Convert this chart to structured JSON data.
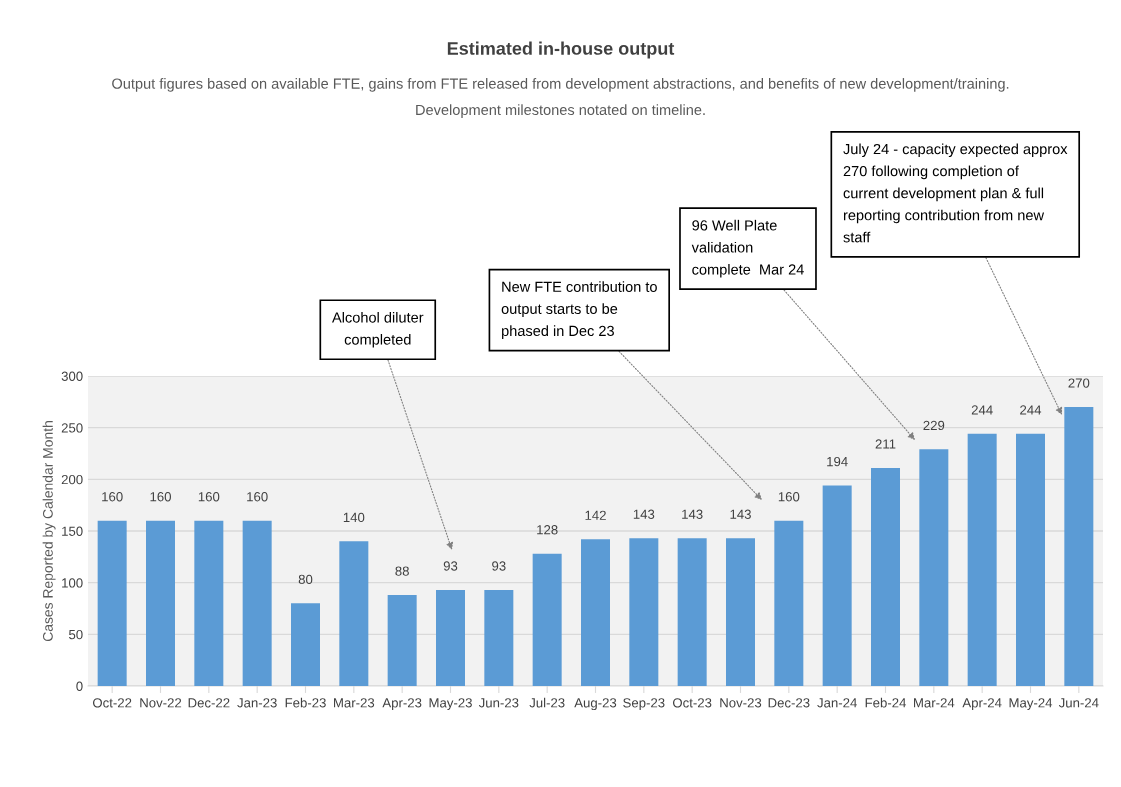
{
  "chart_data": {
    "type": "bar",
    "title": "Estimated in-house output",
    "subtitle": "Output figures based on available FTE, gains from FTE released from development abstractions, and benefits of new development/training.\nDevelopment milestones notated on timeline.",
    "ylabel": "Cases Reported by Calendar Month",
    "categories": [
      "Oct-22",
      "Nov-22",
      "Dec-22",
      "Jan-23",
      "Feb-23",
      "Mar-23",
      "Apr-23",
      "May-23",
      "Jun-23",
      "Jul-23",
      "Aug-23",
      "Sep-23",
      "Oct-23",
      "Nov-23",
      "Dec-23",
      "Jan-24",
      "Feb-24",
      "Mar-24",
      "Apr-24",
      "May-24",
      "Jun-24"
    ],
    "values": [
      160,
      160,
      160,
      160,
      80,
      140,
      88,
      93,
      93,
      128,
      142,
      143,
      143,
      143,
      160,
      194,
      211,
      229,
      244,
      244,
      270
    ],
    "color": "#5b9bd5",
    "ylim": [
      0,
      300
    ],
    "yticks": [
      0,
      50,
      100,
      150,
      200,
      250,
      300
    ],
    "grid": "y",
    "data_labels": true,
    "annotations": [
      "Alcohol diluter\ncompleted",
      "New FTE contribution to\noutput starts to be\nphased in Dec 23",
      "96 Well Plate\nvalidation\ncomplete  Mar 24",
      "July 24 - capacity expected approx\n270 following completion of\ncurrent development plan & full\nreporting contribution from new\nstaff"
    ]
  }
}
